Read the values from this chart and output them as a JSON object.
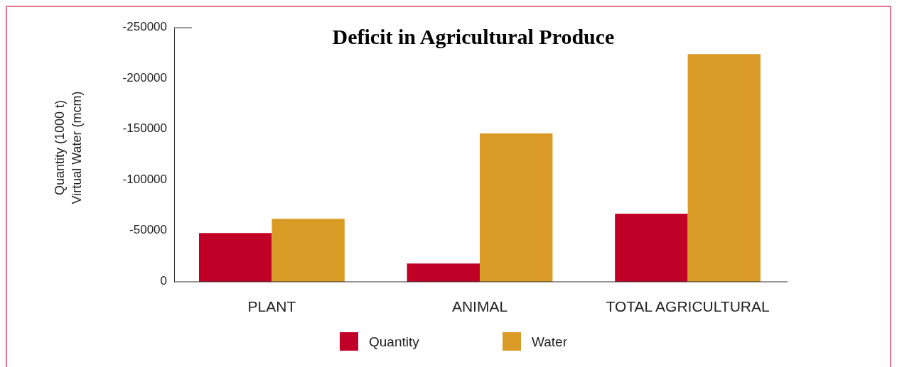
{
  "chart_data": {
    "type": "bar",
    "title": "Deficit in Agricultural Produce",
    "ylabel": "Quantity (1000 t)\nVirtual Water (mcm)",
    "categories": [
      "PLANT",
      "ANIMAL",
      "TOTAL AGRICULTURAL"
    ],
    "series": [
      {
        "name": "Quantity",
        "color": "#c10028",
        "values": [
          -48000,
          -18000,
          -67000
        ]
      },
      {
        "name": "Water",
        "color": "#da9a26",
        "values": [
          -62000,
          -146000,
          -224000
        ]
      }
    ],
    "ylim": [
      0,
      -250000
    ],
    "yticks": [
      0,
      -50000,
      -100000,
      -150000,
      -200000,
      -250000
    ],
    "grid": false,
    "legend": "bottom"
  }
}
